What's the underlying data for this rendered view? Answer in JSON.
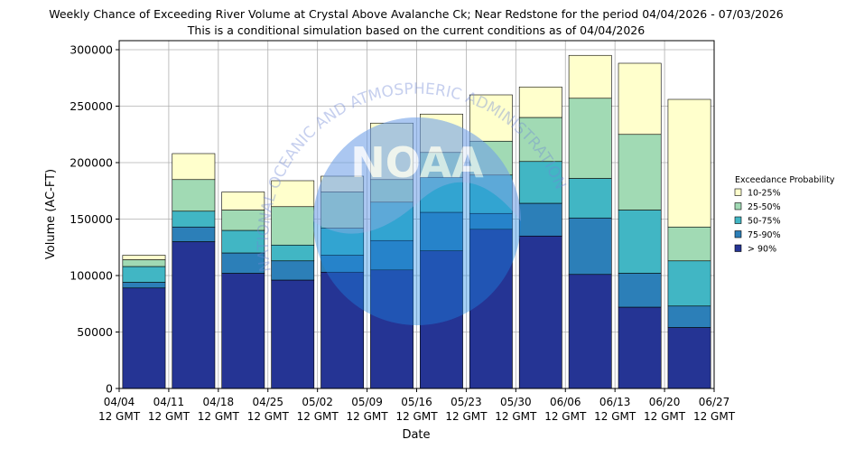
{
  "chart_data": {
    "type": "bar",
    "stacked": true,
    "title": "Weekly Chance of Exceeding River Volume at Crystal Above Avalanche Ck; Near Redstone for the period 04/04/2026 - 07/03/2026",
    "subtitle": "This is a conditional simulation based on the current conditions as of 04/04/2026",
    "xlabel": "Date",
    "ylabel": "Volume (AC-FT)",
    "ylim": [
      0,
      308000
    ],
    "yticks": [
      0,
      50000,
      100000,
      150000,
      200000,
      250000,
      300000
    ],
    "ytick_labels": [
      "0",
      "50000",
      "100000",
      "150000",
      "200000",
      "250000",
      "300000"
    ],
    "grid": true,
    "xtick_labels": [
      [
        "04/04",
        "12 GMT"
      ],
      [
        "04/11",
        "12 GMT"
      ],
      [
        "04/18",
        "12 GMT"
      ],
      [
        "04/25",
        "12 GMT"
      ],
      [
        "05/02",
        "12 GMT"
      ],
      [
        "05/09",
        "12 GMT"
      ],
      [
        "05/16",
        "12 GMT"
      ],
      [
        "05/23",
        "12 GMT"
      ],
      [
        "05/30",
        "12 GMT"
      ],
      [
        "06/06",
        "12 GMT"
      ],
      [
        "06/13",
        "12 GMT"
      ],
      [
        "06/20",
        "12 GMT"
      ],
      [
        "06/27",
        "12 GMT"
      ]
    ],
    "bars": [
      {
        "upper_edges": [
          89000,
          94000,
          108000,
          114000,
          118000
        ]
      },
      {
        "upper_edges": [
          130000,
          143000,
          157000,
          185000,
          208000
        ]
      },
      {
        "upper_edges": [
          102000,
          120000,
          140000,
          158000,
          174000
        ]
      },
      {
        "upper_edges": [
          96000,
          113000,
          127000,
          161000,
          184000
        ]
      },
      {
        "upper_edges": [
          103000,
          118000,
          142000,
          174000,
          188000
        ]
      },
      {
        "upper_edges": [
          105000,
          131000,
          165000,
          185000,
          235000
        ]
      },
      {
        "upper_edges": [
          122000,
          156000,
          187000,
          209000,
          243000
        ]
      },
      {
        "upper_edges": [
          141000,
          155000,
          189000,
          219000,
          260000
        ]
      },
      {
        "upper_edges": [
          135000,
          164000,
          201000,
          240000,
          267000
        ]
      },
      {
        "upper_edges": [
          101000,
          151000,
          186000,
          257000,
          295000
        ]
      },
      {
        "upper_edges": [
          72000,
          102000,
          158000,
          225000,
          288000
        ]
      },
      {
        "upper_edges": [
          54000,
          73000,
          113000,
          143000,
          256000
        ]
      }
    ],
    "series": [
      {
        "name": "> 90%",
        "color": "#253494"
      },
      {
        "name": "75-90%",
        "color": "#2c7fb8"
      },
      {
        "name": "50-75%",
        "color": "#41b6c4"
      },
      {
        "name": "25-50%",
        "color": "#a1dab4"
      },
      {
        "name": "10-25%",
        "color": "#ffffcc"
      }
    ],
    "legend_title": "Exceedance Probability",
    "legend_order": [
      "10-25%",
      "25-50%",
      "50-75%",
      "75-90%",
      "> 90%"
    ],
    "legend_position": "right",
    "watermark": "NATIONAL OCEANIC AND ATMOSPHERIC ADMINISTRATION NOAA"
  }
}
